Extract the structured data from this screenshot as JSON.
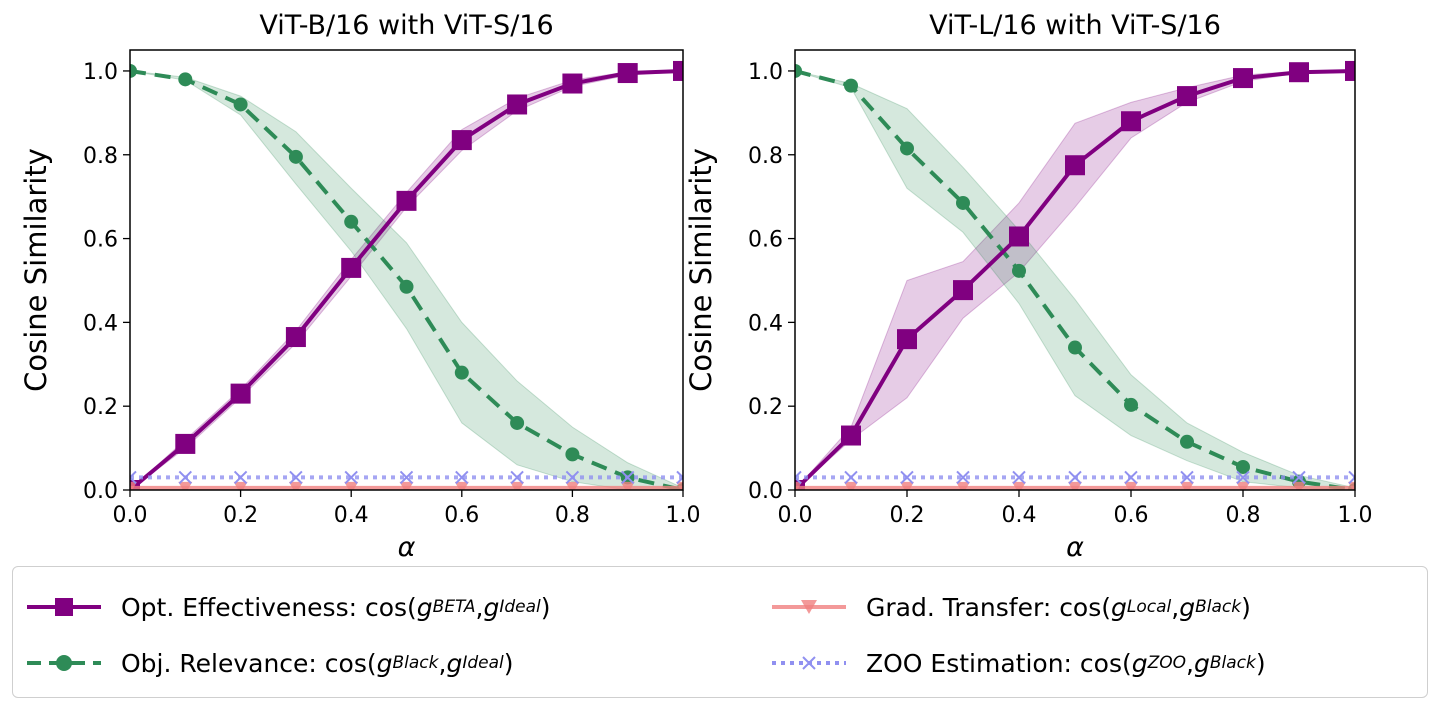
{
  "chart_data": [
    {
      "type": "line",
      "title": "ViT-B/16 with ViT-S/16",
      "xlabel": "α",
      "ylabel": "Cosine Similarity",
      "xlim": [
        0,
        1
      ],
      "ylim": [
        0,
        1.05
      ],
      "xticks": [
        "0.0",
        "0.2",
        "0.4",
        "0.6",
        "0.8",
        "1.0"
      ],
      "yticks": [
        "0.0",
        "0.2",
        "0.4",
        "0.6",
        "0.8",
        "1.0"
      ],
      "grid": false,
      "x": [
        0,
        0.1,
        0.2,
        0.3,
        0.4,
        0.5,
        0.6,
        0.7,
        0.8,
        0.9,
        1.0
      ],
      "series": [
        {
          "name": "Opt. Effectiveness",
          "values": [
            0.0,
            0.11,
            0.23,
            0.365,
            0.53,
            0.69,
            0.835,
            0.92,
            0.97,
            0.995,
            1.0
          ],
          "lower": [
            0.0,
            0.1,
            0.22,
            0.35,
            0.51,
            0.675,
            0.81,
            0.905,
            0.963,
            0.99,
            0.998
          ],
          "upper": [
            0.0,
            0.12,
            0.24,
            0.38,
            0.55,
            0.71,
            0.86,
            0.935,
            0.978,
            0.998,
            1.0
          ]
        },
        {
          "name": "Obj. Relevance",
          "values": [
            1.0,
            0.98,
            0.92,
            0.795,
            0.64,
            0.485,
            0.28,
            0.16,
            0.085,
            0.03,
            0.0
          ],
          "lower": [
            1.0,
            0.978,
            0.895,
            0.73,
            0.57,
            0.385,
            0.16,
            0.06,
            0.02,
            0.0,
            0.0
          ],
          "upper": [
            1.0,
            0.985,
            0.94,
            0.855,
            0.72,
            0.59,
            0.4,
            0.26,
            0.15,
            0.065,
            0.005
          ]
        },
        {
          "name": "Grad. Transfer",
          "values": [
            0.005,
            0.005,
            0.005,
            0.005,
            0.005,
            0.005,
            0.005,
            0.005,
            0.005,
            0.005,
            0.005
          ]
        },
        {
          "name": "ZOO Estimation",
          "values": [
            0.03,
            0.03,
            0.03,
            0.03,
            0.03,
            0.03,
            0.03,
            0.03,
            0.03,
            0.03,
            0.03
          ]
        }
      ]
    },
    {
      "type": "line",
      "title": "ViT-L/16 with ViT-S/16",
      "xlabel": "α",
      "ylabel": "Cosine Similarity",
      "xlim": [
        0,
        1
      ],
      "ylim": [
        0,
        1.05
      ],
      "xticks": [
        "0.0",
        "0.2",
        "0.4",
        "0.6",
        "0.8",
        "1.0"
      ],
      "yticks": [
        "0.0",
        "0.2",
        "0.4",
        "0.6",
        "0.8",
        "1.0"
      ],
      "grid": false,
      "x": [
        0,
        0.1,
        0.2,
        0.3,
        0.4,
        0.5,
        0.6,
        0.7,
        0.8,
        0.9,
        1.0
      ],
      "series": [
        {
          "name": "Opt. Effectiveness",
          "values": [
            0.0,
            0.13,
            0.36,
            0.477,
            0.605,
            0.775,
            0.88,
            0.94,
            0.983,
            0.997,
            1.0
          ],
          "lower": [
            0.0,
            0.12,
            0.22,
            0.41,
            0.52,
            0.675,
            0.84,
            0.925,
            0.975,
            0.995,
            0.999
          ],
          "upper": [
            0.0,
            0.15,
            0.5,
            0.545,
            0.685,
            0.875,
            0.925,
            0.96,
            0.99,
            1.0,
            1.0
          ]
        },
        {
          "name": "Obj. Relevance",
          "values": [
            1.0,
            0.965,
            0.815,
            0.685,
            0.523,
            0.34,
            0.203,
            0.115,
            0.055,
            0.02,
            0.0
          ],
          "lower": [
            1.0,
            0.96,
            0.72,
            0.615,
            0.445,
            0.225,
            0.13,
            0.07,
            0.02,
            0.005,
            0.0
          ],
          "upper": [
            1.0,
            0.97,
            0.91,
            0.77,
            0.62,
            0.455,
            0.275,
            0.16,
            0.09,
            0.035,
            0.005
          ]
        },
        {
          "name": "Grad. Transfer",
          "values": [
            0.005,
            0.005,
            0.005,
            0.005,
            0.005,
            0.005,
            0.005,
            0.005,
            0.005,
            0.005,
            0.005
          ]
        },
        {
          "name": "ZOO Estimation",
          "values": [
            0.03,
            0.03,
            0.03,
            0.03,
            0.03,
            0.03,
            0.03,
            0.03,
            0.03,
            0.03,
            0.03
          ]
        }
      ]
    }
  ],
  "styles": {
    "Opt. Effectiveness": {
      "color": "#800080",
      "marker": "square",
      "line": "solid"
    },
    "Obj. Relevance": {
      "color": "#2e8b57",
      "marker": "circle",
      "line": "dashed"
    },
    "Grad. Transfer": {
      "color": "#f08080",
      "marker": "triangle-down",
      "line": "solid"
    },
    "ZOO Estimation": {
      "color": "#9090f0",
      "marker": "x",
      "line": "dotted"
    }
  },
  "legend": {
    "placement": "bottom",
    "items": [
      {
        "prefix": "Opt. Effectiveness: cos(",
        "g": "g",
        "sub1": "BETA",
        "sep": ", ",
        "sub2": "Ideal",
        "suffix": ")"
      },
      {
        "prefix": "Obj. Relevance: cos(",
        "g": "g",
        "sub1": "Black",
        "sep": ", ",
        "sub2": "Ideal",
        "suffix": ")"
      },
      {
        "prefix": "Grad. Transfer: cos(",
        "g": "g",
        "sub1": "Local",
        "sep": ", ",
        "sub2": "Black",
        "suffix": ")"
      },
      {
        "prefix": "ZOO Estimation: cos(",
        "g": "g",
        "sub1": "ZOO",
        "sep": ", ",
        "sub2": "Black",
        "suffix": ")"
      }
    ]
  }
}
